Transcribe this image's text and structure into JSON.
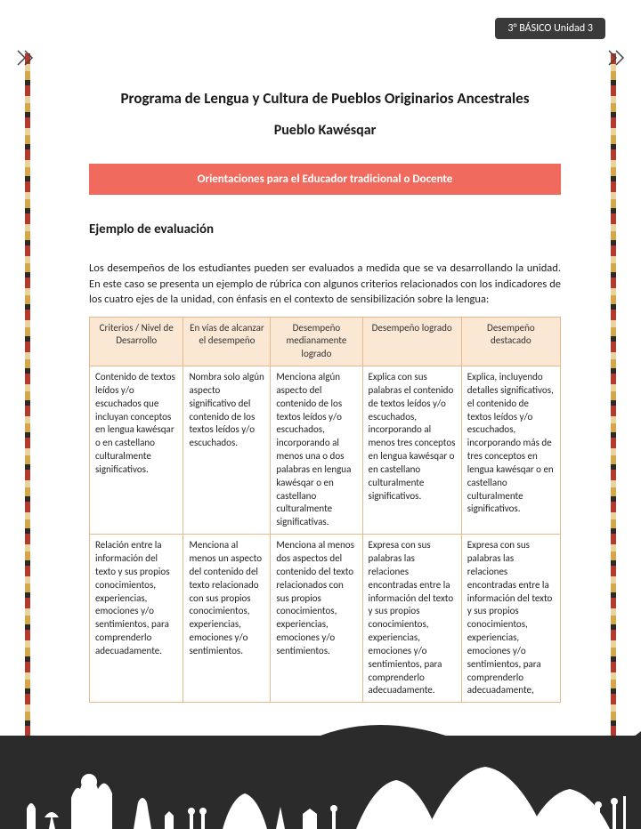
{
  "page_badge": "3° BÁSICO Unidad 3",
  "title": "Programa de Lengua y Cultura de Pueblos Originarios Ancestrales",
  "subtitle": "Pueblo Kawésqar",
  "banner": "Orientaciones para el Educador tradicional o Docente",
  "section_title": "Ejemplo de evaluación",
  "intro": "Los desempeños de los estudiantes pueden ser evaluados a medida que se va desarrollando la unidad. En este caso se presenta un ejemplo de rúbrica con algunos criterios relacionados con los indicadores de los cuatro ejes de la unidad, con énfasis en el contexto de sensibilización sobre la lengua:",
  "table": {
    "headers": [
      "Criterios / Nivel de Desarrollo",
      "En vías de alcanzar el desempeño",
      "Desempeño medianamente logrado",
      "Desempeño logrado",
      "Desempeño destacado"
    ],
    "rows": [
      [
        "Contenido de textos leídos y/o escuchados que incluyan conceptos en lengua kawésqar o en castellano culturalmente significativos.",
        "Nombra solo algún aspecto significativo del contenido de los textos leídos y/o escuchados.",
        "Menciona algún aspecto del contenido de los textos leídos y/o escuchados, incorporando al menos una o dos palabras en lengua kawésqar o en castellano culturalmente significativas.",
        "Explica con sus palabras el contenido de textos leídos y/o escuchados, incorporando al menos tres conceptos en lengua kawésqar o en castellano culturalmente significativos.",
        "Explica, incluyendo detalles significativos, el contenido de textos leídos y/o escuchados, incorporando más de tres conceptos en lengua kawésqar o en castellano culturalmente significativos."
      ],
      [
        "Relación entre la información del texto y sus propios conocimientos, experiencias, emociones y/o sentimientos, para comprenderlo adecuadamente.",
        "Menciona al menos un aspecto del contenido del texto relacionado con sus propios conocimientos, experiencias, emociones y/o sentimientos.",
        "Menciona al menos dos aspectos del contenido del texto relacionados con sus propios conocimientos, experiencias, emociones y/o sentimientos.",
        "Expresa con sus palabras las relaciones encontradas entre la información del texto y sus propios conocimientos, experiencias, emociones y/o sentimientos, para comprenderlo adecuadamente.",
        "Expresa con sus palabras las relaciones encontradas entre la información del texto y sus propios conocimientos, experiencias, emociones y/o sentimientos, para comprenderlo adecuadamente,"
      ]
    ]
  },
  "colors": {
    "badge_bg": "#3a3a3a",
    "banner_bg": "#f16a5e",
    "table_header_bg": "#fbe8d4",
    "table_border": "#e6b88a",
    "footer_bg": "#2b2b2b"
  }
}
